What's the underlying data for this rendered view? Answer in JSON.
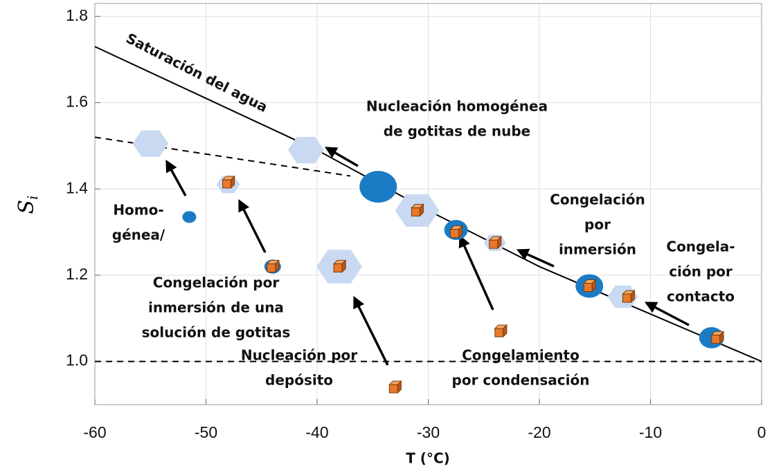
{
  "chart_data": {
    "type": "scatter",
    "xlabel": "T (°C)",
    "ylabel": {
      "main": "S",
      "sub": "i"
    },
    "xlim": [
      -60,
      0
    ],
    "ylim": [
      0.9,
      1.83
    ],
    "xticks": [
      -60,
      -50,
      -40,
      -30,
      -20,
      -10,
      0
    ],
    "yticks": [
      {
        "value": 1,
        "label": "1.0"
      },
      1.2,
      1.4,
      1.6,
      1.8
    ],
    "grid": true,
    "series": [
      {
        "name": "Saturación del agua",
        "marker": "line",
        "color": "#000000",
        "dashed": false,
        "x": [
          -60,
          -50,
          -40,
          -30,
          -20,
          -10,
          0
        ],
        "values": [
          1.73,
          1.61,
          1.49,
          1.35,
          1.22,
          1.11,
          1.0
        ]
      },
      {
        "marker": "line",
        "color": "#000000",
        "dashed": true,
        "x": [
          -60,
          -37
        ],
        "values": [
          1.52,
          1.43
        ]
      },
      {
        "marker": "line",
        "color": "#000000",
        "dashed": true,
        "x": [
          -60,
          0
        ],
        "values": [
          1.0,
          1.0
        ]
      },
      {
        "marker": "hexagon",
        "color": "#c9d9f2",
        "x": [
          -55,
          -41,
          -48,
          -31,
          -38,
          -24,
          -12.5
        ],
        "values": [
          1.505,
          1.49,
          1.41,
          1.35,
          1.22,
          1.275,
          1.15
        ]
      },
      {
        "marker": "circle",
        "color": "#1b7bc4",
        "x": [
          -51.5,
          -44,
          -34.5,
          -27.5,
          -15.5,
          -4.5
        ],
        "values": [
          1.335,
          1.22,
          1.405,
          1.305,
          1.175,
          1.055
        ]
      },
      {
        "marker": "cube",
        "color": "#e8782a",
        "x": [
          -48,
          -44,
          -31,
          -27.5,
          -24,
          -38,
          -15.5,
          -12,
          -4,
          -23.5,
          -33
        ],
        "values": [
          1.415,
          1.22,
          1.35,
          1.3,
          1.275,
          1.22,
          1.175,
          1.15,
          1.055,
          1.07,
          0.94
        ]
      }
    ],
    "annotations": [
      [
        "Nucleación homogénea",
        "de gotitas de nube"
      ],
      [
        "Congelación",
        "por",
        "inmersión"
      ],
      [
        "Congela-",
        "ción por",
        "contacto"
      ],
      [
        "Homo-",
        "génea/"
      ],
      [
        "Congelación por",
        "inmersión de una",
        "solución de gotitas"
      ],
      [
        "Nucleación por",
        "depósito"
      ],
      [
        "Congelamiento",
        "por condensación"
      ]
    ]
  }
}
